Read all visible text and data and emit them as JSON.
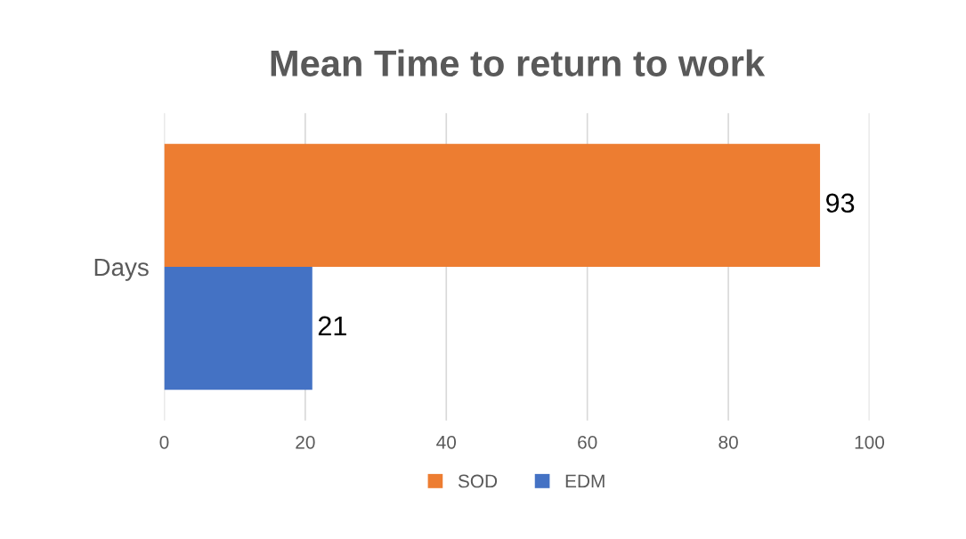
{
  "chart_data": {
    "type": "bar",
    "orientation": "horizontal",
    "title": "Mean Time to return to work",
    "categories": [
      "Days"
    ],
    "series": [
      {
        "name": "SOD",
        "color": "#ed7d31",
        "values": [
          93
        ]
      },
      {
        "name": "EDM",
        "color": "#4472c4",
        "values": [
          21
        ]
      }
    ],
    "xlim": [
      0,
      100
    ],
    "xticks": [
      0,
      20,
      40,
      60,
      80,
      100
    ],
    "grid": "x",
    "legend": "bottom",
    "data_labels": true
  }
}
